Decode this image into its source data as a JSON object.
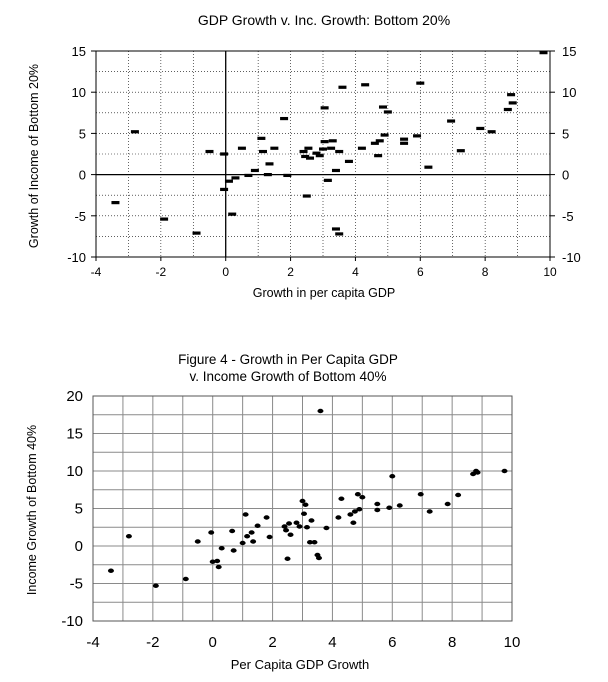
{
  "chart_data": [
    {
      "type": "scatter",
      "title": "GDP Growth v. Inc. Growth: Bottom 20%",
      "xlabel": "Growth in per capita GDP",
      "ylabel": "Growth of Income of Bottom 20%",
      "xlim": [
        -4,
        10
      ],
      "ylim": [
        -10,
        15
      ],
      "xticks": [
        "-4",
        "-2",
        "0",
        "2",
        "4",
        "6",
        "8",
        "10"
      ],
      "yticks": [
        "15",
        "10",
        "5",
        "0",
        "-5",
        "-10"
      ],
      "grid": true,
      "marker": "dash",
      "points": [
        [
          -3.4,
          -3.4
        ],
        [
          -2.8,
          5.2
        ],
        [
          -1.9,
          -5.4
        ],
        [
          -0.9,
          -7.1
        ],
        [
          -0.5,
          2.8
        ],
        [
          -0.05,
          2.5
        ],
        [
          -0.05,
          -1.8
        ],
        [
          0.1,
          -0.8
        ],
        [
          0.2,
          -4.8
        ],
        [
          0.3,
          -0.4
        ],
        [
          0.5,
          3.2
        ],
        [
          0.7,
          -0.1
        ],
        [
          0.9,
          0.5
        ],
        [
          1.1,
          4.4
        ],
        [
          1.15,
          2.8
        ],
        [
          1.3,
          0.0
        ],
        [
          1.35,
          1.3
        ],
        [
          1.5,
          3.2
        ],
        [
          1.8,
          6.8
        ],
        [
          1.9,
          -0.1
        ],
        [
          2.4,
          2.8
        ],
        [
          2.45,
          2.2
        ],
        [
          2.5,
          -2.6
        ],
        [
          2.55,
          3.2
        ],
        [
          2.6,
          2.0
        ],
        [
          2.8,
          2.6
        ],
        [
          2.9,
          2.3
        ],
        [
          3.0,
          3.1
        ],
        [
          3.05,
          4.0
        ],
        [
          3.05,
          8.1
        ],
        [
          3.15,
          -0.7
        ],
        [
          3.25,
          3.2
        ],
        [
          3.3,
          4.1
        ],
        [
          3.4,
          0.5
        ],
        [
          3.5,
          2.8
        ],
        [
          3.4,
          -6.6
        ],
        [
          3.5,
          -7.2
        ],
        [
          3.6,
          10.6
        ],
        [
          3.8,
          1.6
        ],
        [
          4.2,
          3.2
        ],
        [
          4.3,
          10.9
        ],
        [
          4.6,
          3.8
        ],
        [
          4.7,
          2.3
        ],
        [
          4.75,
          4.1
        ],
        [
          4.85,
          8.2
        ],
        [
          4.9,
          4.8
        ],
        [
          5.0,
          7.6
        ],
        [
          5.5,
          4.3
        ],
        [
          5.5,
          3.8
        ],
        [
          5.9,
          4.7
        ],
        [
          6.0,
          11.1
        ],
        [
          6.25,
          0.9
        ],
        [
          6.95,
          6.5
        ],
        [
          7.25,
          2.9
        ],
        [
          7.85,
          5.6
        ],
        [
          8.2,
          5.2
        ],
        [
          8.7,
          7.9
        ],
        [
          8.8,
          9.7
        ],
        [
          8.85,
          8.7
        ],
        [
          9.8,
          14.8
        ]
      ]
    },
    {
      "type": "scatter",
      "title": "Figure 4 - Growth in Per Capita GDP\nv. Income Growth of Bottom 40%",
      "title_lines": [
        "Figure 4 - Growth in Per Capita GDP",
        "v. Income Growth of Bottom 40%"
      ],
      "xlabel": "Per Capita GDP Growth",
      "ylabel": "Income Growth of Bottom 40%",
      "xlim": [
        -4,
        10
      ],
      "ylim": [
        -10,
        20
      ],
      "xticks": [
        "-4",
        "-2",
        "0",
        "2",
        "4",
        "6",
        "8",
        "10"
      ],
      "yticks": [
        "20",
        "15",
        "10",
        "5",
        "0",
        "-5",
        "-10"
      ],
      "grid": true,
      "marker": "dot",
      "points": [
        [
          -3.4,
          -3.3
        ],
        [
          -2.8,
          1.3
        ],
        [
          -1.9,
          -5.3
        ],
        [
          -0.9,
          -4.4
        ],
        [
          -0.5,
          0.6
        ],
        [
          -0.05,
          1.8
        ],
        [
          0.0,
          -2.1
        ],
        [
          0.15,
          -2.0
        ],
        [
          0.2,
          -2.8
        ],
        [
          0.3,
          -0.3
        ],
        [
          0.65,
          2.0
        ],
        [
          0.7,
          -0.6
        ],
        [
          1.0,
          0.4
        ],
        [
          1.1,
          4.2
        ],
        [
          1.15,
          1.3
        ],
        [
          1.3,
          1.8
        ],
        [
          1.35,
          0.6
        ],
        [
          1.5,
          2.7
        ],
        [
          1.8,
          3.8
        ],
        [
          1.9,
          1.2
        ],
        [
          2.4,
          2.6
        ],
        [
          2.45,
          2.1
        ],
        [
          2.5,
          -1.7
        ],
        [
          2.55,
          3.0
        ],
        [
          2.6,
          1.5
        ],
        [
          2.8,
          3.1
        ],
        [
          2.9,
          2.6
        ],
        [
          3.0,
          6.0
        ],
        [
          3.05,
          4.3
        ],
        [
          3.1,
          5.5
        ],
        [
          3.15,
          2.5
        ],
        [
          3.25,
          0.5
        ],
        [
          3.3,
          3.4
        ],
        [
          3.4,
          0.5
        ],
        [
          3.5,
          -1.2
        ],
        [
          3.55,
          -1.6
        ],
        [
          3.6,
          18.0
        ],
        [
          3.8,
          2.4
        ],
        [
          4.2,
          3.8
        ],
        [
          4.3,
          6.3
        ],
        [
          4.6,
          4.2
        ],
        [
          4.7,
          3.1
        ],
        [
          4.75,
          4.6
        ],
        [
          4.85,
          6.9
        ],
        [
          4.9,
          4.9
        ],
        [
          5.0,
          6.5
        ],
        [
          5.5,
          4.8
        ],
        [
          5.5,
          5.6
        ],
        [
          5.9,
          5.1
        ],
        [
          6.0,
          9.3
        ],
        [
          6.25,
          5.4
        ],
        [
          6.95,
          6.9
        ],
        [
          7.25,
          4.6
        ],
        [
          7.85,
          5.6
        ],
        [
          8.2,
          6.8
        ],
        [
          8.7,
          9.6
        ],
        [
          8.8,
          10.0
        ],
        [
          8.85,
          9.8
        ],
        [
          9.75,
          10.0
        ]
      ]
    }
  ]
}
